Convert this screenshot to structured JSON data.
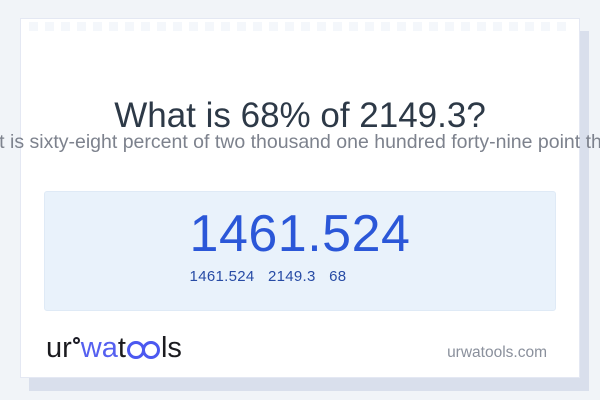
{
  "card": {
    "title": "What is 68% of 2149.3?",
    "subtitle_in_words": "What is sixty-eight percent of two thousand one hundred forty-nine point three?",
    "result_box": {
      "main_value": "1461.524",
      "detail_values": [
        "1461.524",
        "2149.3",
        "68"
      ]
    }
  },
  "footer": {
    "logo": {
      "full_name": "urwatools",
      "seg_ur": "ur",
      "seg_wa": "wa",
      "seg_t": "t",
      "seg_ls": "ls",
      "ring_icon": "small-ring",
      "glasses_icon": "oo-glasses"
    },
    "website": "urwatools.com"
  },
  "colors": {
    "page_background": "#f1f4f8",
    "card_background": "#ffffff",
    "card_shadow": "#d9dfec",
    "title_text": "#2d3947",
    "subtitle_text": "#7d828d",
    "result_box_background": "#e9f2fb",
    "result_value_blue": "#2b57d8",
    "result_detail_blue": "#274ba5",
    "logo_blue": "#5560f0",
    "url_gray": "#8a909c"
  }
}
